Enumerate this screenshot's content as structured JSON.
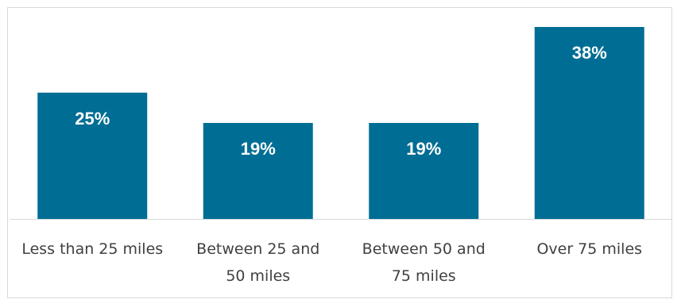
{
  "chart_data": {
    "type": "bar",
    "categories": [
      [
        "Less than 25 miles"
      ],
      [
        "Between 25 and",
        "50 miles"
      ],
      [
        "Between 50 and",
        "75 miles"
      ],
      [
        "Over 75 miles"
      ]
    ],
    "values": [
      25,
      19,
      19,
      38
    ],
    "data_labels": [
      "25%",
      "19%",
      "19%",
      "38%"
    ],
    "title": "",
    "xlabel": "",
    "ylabel": "",
    "ylim": [
      0,
      40
    ],
    "grid": false,
    "legend": "none",
    "bar_color": "#006e94",
    "axis_color": "#d9d9d9",
    "label_color": "#404040"
  }
}
